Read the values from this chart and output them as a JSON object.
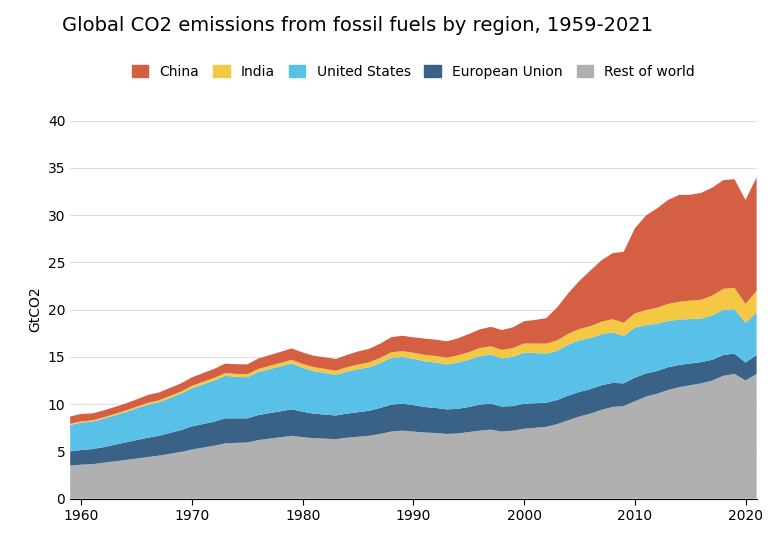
{
  "title": "Global CO2 emissions from fossil fuels by region, 1959-2021",
  "ylabel": "GtCO2",
  "years": [
    1959,
    1960,
    1961,
    1962,
    1963,
    1964,
    1965,
    1966,
    1967,
    1968,
    1969,
    1970,
    1971,
    1972,
    1973,
    1974,
    1975,
    1976,
    1977,
    1978,
    1979,
    1980,
    1981,
    1982,
    1983,
    1984,
    1985,
    1986,
    1987,
    1988,
    1989,
    1990,
    1991,
    1992,
    1993,
    1994,
    1995,
    1996,
    1997,
    1998,
    1999,
    2000,
    2001,
    2002,
    2003,
    2004,
    2005,
    2006,
    2007,
    2008,
    2009,
    2010,
    2011,
    2012,
    2013,
    2014,
    2015,
    2016,
    2017,
    2018,
    2019,
    2020,
    2021
  ],
  "regions": [
    "Rest of world",
    "European Union",
    "United States",
    "India",
    "China"
  ],
  "colors": [
    "#b0b0b0",
    "#3a6186",
    "#59c0e8",
    "#f5c843",
    "#d45f43"
  ],
  "data": {
    "Rest of world": [
      3.5,
      3.6,
      3.65,
      3.8,
      3.95,
      4.1,
      4.25,
      4.4,
      4.55,
      4.75,
      4.95,
      5.2,
      5.4,
      5.6,
      5.85,
      5.9,
      5.95,
      6.2,
      6.35,
      6.5,
      6.65,
      6.5,
      6.4,
      6.35,
      6.3,
      6.45,
      6.55,
      6.65,
      6.85,
      7.1,
      7.2,
      7.1,
      7.0,
      6.95,
      6.85,
      6.9,
      7.05,
      7.2,
      7.3,
      7.1,
      7.2,
      7.4,
      7.5,
      7.6,
      7.9,
      8.3,
      8.7,
      9.0,
      9.4,
      9.7,
      9.8,
      10.3,
      10.8,
      11.1,
      11.5,
      11.8,
      12.0,
      12.2,
      12.5,
      13.0,
      13.2,
      12.5,
      13.2
    ],
    "European Union": [
      1.5,
      1.55,
      1.6,
      1.65,
      1.75,
      1.85,
      1.95,
      2.05,
      2.1,
      2.2,
      2.3,
      2.45,
      2.5,
      2.55,
      2.65,
      2.6,
      2.55,
      2.65,
      2.7,
      2.75,
      2.8,
      2.7,
      2.6,
      2.55,
      2.5,
      2.55,
      2.6,
      2.65,
      2.75,
      2.85,
      2.85,
      2.8,
      2.7,
      2.65,
      2.6,
      2.6,
      2.65,
      2.75,
      2.75,
      2.65,
      2.6,
      2.65,
      2.6,
      2.55,
      2.55,
      2.6,
      2.6,
      2.6,
      2.6,
      2.55,
      2.4,
      2.5,
      2.45,
      2.4,
      2.4,
      2.35,
      2.3,
      2.25,
      2.2,
      2.2,
      2.15,
      1.9,
      2.0
    ],
    "United States": [
      2.8,
      2.9,
      2.9,
      3.0,
      3.1,
      3.2,
      3.35,
      3.5,
      3.55,
      3.7,
      3.85,
      4.05,
      4.2,
      4.35,
      4.5,
      4.4,
      4.35,
      4.55,
      4.65,
      4.75,
      4.85,
      4.65,
      4.5,
      4.4,
      4.3,
      4.45,
      4.55,
      4.6,
      4.75,
      4.95,
      4.95,
      4.9,
      4.85,
      4.8,
      4.75,
      4.9,
      5.0,
      5.15,
      5.2,
      5.1,
      5.2,
      5.4,
      5.3,
      5.2,
      5.2,
      5.4,
      5.45,
      5.4,
      5.4,
      5.35,
      5.0,
      5.3,
      5.1,
      5.0,
      4.9,
      4.8,
      4.7,
      4.6,
      4.7,
      4.8,
      4.7,
      4.2,
      4.5
    ],
    "India": [
      0.12,
      0.13,
      0.14,
      0.15,
      0.16,
      0.17,
      0.18,
      0.19,
      0.2,
      0.21,
      0.22,
      0.24,
      0.26,
      0.27,
      0.29,
      0.3,
      0.31,
      0.33,
      0.35,
      0.37,
      0.39,
      0.4,
      0.42,
      0.43,
      0.44,
      0.46,
      0.49,
      0.52,
      0.55,
      0.58,
      0.61,
      0.64,
      0.67,
      0.7,
      0.72,
      0.75,
      0.79,
      0.83,
      0.87,
      0.89,
      0.93,
      0.97,
      1.01,
      1.05,
      1.1,
      1.15,
      1.2,
      1.25,
      1.32,
      1.38,
      1.42,
      1.5,
      1.6,
      1.7,
      1.8,
      1.88,
      1.95,
      2.0,
      2.1,
      2.2,
      2.25,
      2.0,
      2.3
    ],
    "China": [
      0.78,
      0.79,
      0.73,
      0.73,
      0.73,
      0.75,
      0.77,
      0.82,
      0.83,
      0.85,
      0.87,
      0.9,
      0.93,
      0.96,
      1.0,
      1.02,
      1.05,
      1.1,
      1.13,
      1.16,
      1.21,
      1.22,
      1.2,
      1.22,
      1.24,
      1.3,
      1.38,
      1.43,
      1.5,
      1.6,
      1.63,
      1.63,
      1.72,
      1.72,
      1.73,
      1.8,
      1.92,
      1.98,
      2.06,
      2.1,
      2.2,
      2.35,
      2.5,
      2.7,
      3.5,
      4.3,
      5.1,
      5.9,
      6.5,
      7.0,
      7.5,
      9.0,
      10.0,
      10.5,
      11.0,
      11.3,
      11.2,
      11.3,
      11.4,
      11.5,
      11.5,
      11.0,
      12.0
    ]
  },
  "ylim": [
    0,
    40
  ],
  "yticks": [
    0,
    5,
    10,
    15,
    20,
    25,
    30,
    35,
    40
  ],
  "xlim": [
    1959,
    2021
  ],
  "xticks": [
    1960,
    1970,
    1980,
    1990,
    2000,
    2010,
    2020
  ],
  "background_color": "#ffffff",
  "grid_color": "#e0e0e0",
  "title_fontsize": 14,
  "legend_labels": [
    "China",
    "India",
    "United States",
    "European Union",
    "Rest of world"
  ],
  "legend_colors": [
    "#d45f43",
    "#f5c843",
    "#59c0e8",
    "#3a6186",
    "#b0b0b0"
  ]
}
